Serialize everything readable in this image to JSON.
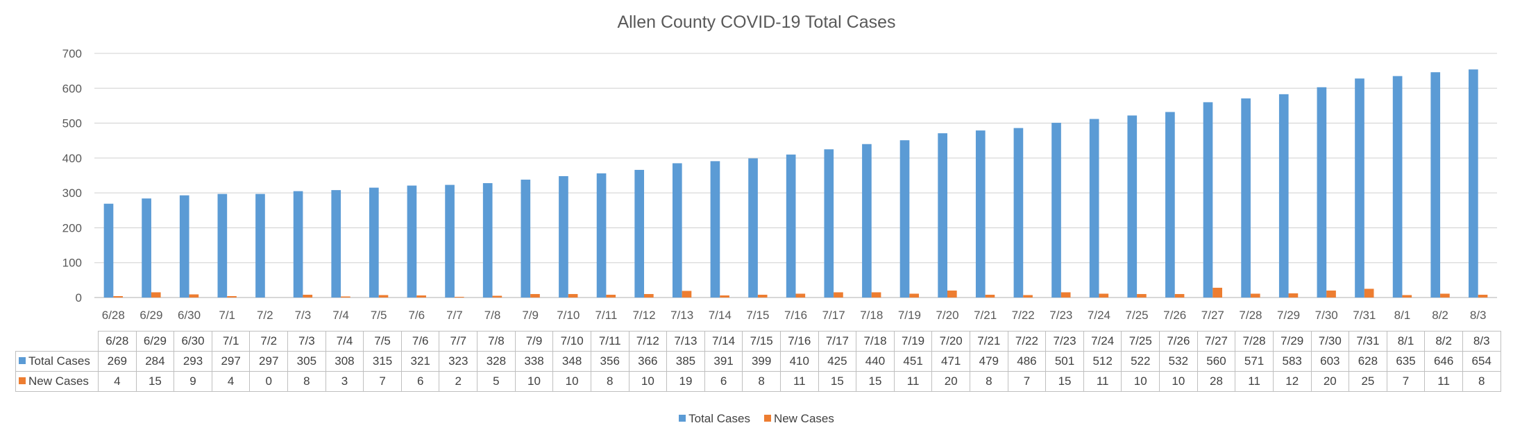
{
  "chart_data": {
    "type": "bar",
    "title": "Allen County COVID-19 Total Cases",
    "xlabel": "",
    "ylabel": "",
    "ylim": [
      0,
      700
    ],
    "yticks": [
      0,
      100,
      200,
      300,
      400,
      500,
      600,
      700
    ],
    "grid": true,
    "legend_position": "bottom",
    "data_table": true,
    "categories": [
      "6/28",
      "6/29",
      "6/30",
      "7/1",
      "7/2",
      "7/3",
      "7/4",
      "7/5",
      "7/6",
      "7/7",
      "7/8",
      "7/9",
      "7/10",
      "7/11",
      "7/12",
      "7/13",
      "7/14",
      "7/15",
      "7/16",
      "7/17",
      "7/18",
      "7/19",
      "7/20",
      "7/21",
      "7/22",
      "7/23",
      "7/24",
      "7/25",
      "7/26",
      "7/27",
      "7/28",
      "7/29",
      "7/30",
      "7/31",
      "8/1",
      "8/2",
      "8/3"
    ],
    "series": [
      {
        "name": "Total Cases",
        "color": "#5b9bd5",
        "values": [
          269,
          284,
          293,
          297,
          297,
          305,
          308,
          315,
          321,
          323,
          328,
          338,
          348,
          356,
          366,
          385,
          391,
          399,
          410,
          425,
          440,
          451,
          471,
          479,
          486,
          501,
          512,
          522,
          532,
          560,
          571,
          583,
          603,
          628,
          635,
          646,
          654
        ]
      },
      {
        "name": "New Cases",
        "color": "#ed7d31",
        "values": [
          4,
          15,
          9,
          4,
          0,
          8,
          3,
          7,
          6,
          2,
          5,
          10,
          10,
          8,
          10,
          19,
          6,
          8,
          11,
          15,
          15,
          11,
          20,
          8,
          7,
          15,
          11,
          10,
          10,
          28,
          11,
          12,
          20,
          25,
          7,
          11,
          8
        ]
      }
    ]
  }
}
